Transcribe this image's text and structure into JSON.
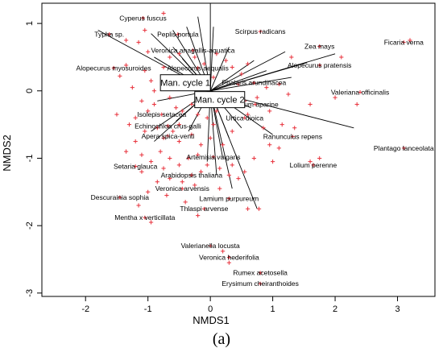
{
  "caption": "(a)",
  "chart_data": {
    "type": "scatter",
    "xlabel": "NMDS1",
    "ylabel": "NMDS2",
    "xlim": [
      -2.7,
      3.6
    ],
    "ylim": [
      -3.05,
      1.3
    ],
    "xticks": [
      "-2",
      "-1",
      "0",
      "1",
      "2",
      "3"
    ],
    "xtick_values": [
      -2,
      -1,
      0,
      1,
      2,
      3
    ],
    "yticks": [
      "1",
      "0",
      "-1",
      "-2",
      "-3"
    ],
    "ytick_values": [
      1,
      0,
      -1,
      -2,
      -3
    ],
    "grid": false,
    "point_color": "#e8323c",
    "point_marker": "+",
    "boxes": [
      {
        "label": "Man. cycle 1",
        "x": -0.4,
        "y": 0.12
      },
      {
        "label": "Man. cycle 2",
        "x": 0.15,
        "y": -0.13
      }
    ],
    "vector_origin": [
      0.0,
      0.0
    ],
    "species": [
      {
        "label": "Cyperus fuscus",
        "x": -1.08,
        "y": 1.08
      },
      {
        "label": "Typha sp.",
        "x": -1.62,
        "y": 0.84
      },
      {
        "label": "Peplis portula",
        "x": -0.52,
        "y": 0.84
      },
      {
        "label": "Scirpus radicans",
        "x": 0.8,
        "y": 0.88
      },
      {
        "label": "Ficaria verna",
        "x": 3.1,
        "y": 0.72
      },
      {
        "label": "Zea mays",
        "x": 1.75,
        "y": 0.66
      },
      {
        "label": "Veronica anagallis-aquatica",
        "x": -0.28,
        "y": 0.6
      },
      {
        "label": "Alopecurus myosuroides",
        "x": -1.55,
        "y": 0.34
      },
      {
        "label": "Alopecurus aequalis",
        "x": -0.2,
        "y": 0.34
      },
      {
        "label": "Alopecurus pratensis",
        "x": 1.75,
        "y": 0.38
      },
      {
        "label": "Phalaris arundinacea",
        "x": 0.7,
        "y": 0.12
      },
      {
        "label": "Valeriana officinalis",
        "x": 2.4,
        "y": -0.02
      },
      {
        "label": "Galium aparine",
        "x": 0.72,
        "y": -0.2
      },
      {
        "label": "Isolepis setacea",
        "x": -0.78,
        "y": -0.35
      },
      {
        "label": "Urtica dioica",
        "x": 0.55,
        "y": -0.4
      },
      {
        "label": "Echinochloa crus-galli",
        "x": -0.68,
        "y": -0.52
      },
      {
        "label": "Apera spica-venti",
        "x": -0.68,
        "y": -0.67
      },
      {
        "label": "Ranunculus repens",
        "x": 1.32,
        "y": -0.68
      },
      {
        "label": "Artemisia vulgaris",
        "x": 0.05,
        "y": -0.98
      },
      {
        "label": "Plantago lanceolata",
        "x": 3.1,
        "y": -0.85
      },
      {
        "label": "Setaria glauca",
        "x": -1.2,
        "y": -1.12
      },
      {
        "label": "Lolium perenne",
        "x": 1.65,
        "y": -1.1
      },
      {
        "label": "Arabidopsis thaliana",
        "x": -0.3,
        "y": -1.25
      },
      {
        "label": "Veronica arvensis",
        "x": -0.45,
        "y": -1.45
      },
      {
        "label": "Descurainia sophia",
        "x": -1.45,
        "y": -1.58
      },
      {
        "label": "Lamium purpureum",
        "x": 0.3,
        "y": -1.6
      },
      {
        "label": "Thlaspi arvense",
        "x": -0.1,
        "y": -1.75
      },
      {
        "label": "Mentha x verticillata",
        "x": -1.05,
        "y": -1.88
      },
      {
        "label": "Valerianella locusta",
        "x": 0.0,
        "y": -2.3
      },
      {
        "label": "Veronica hederifolia",
        "x": 0.3,
        "y": -2.47
      },
      {
        "label": "Rumex acetosella",
        "x": 0.8,
        "y": -2.7
      },
      {
        "label": "Erysimum cheiranthoides",
        "x": 0.8,
        "y": -2.86
      }
    ],
    "vectors": [
      [
        -1.8,
        0.9
      ],
      [
        -0.95,
        0.85
      ],
      [
        -0.6,
        0.9
      ],
      [
        -0.38,
        0.95
      ],
      [
        -0.2,
        1.1
      ],
      [
        0.0,
        1.3
      ],
      [
        0.05,
        0.95
      ],
      [
        0.3,
        0.65
      ],
      [
        -0.9,
        0.5
      ],
      [
        -0.45,
        0.48
      ],
      [
        0.7,
        0.45
      ],
      [
        1.2,
        0.58
      ],
      [
        1.55,
        0.42
      ],
      [
        2.0,
        0.55
      ],
      [
        0.9,
        0.3
      ],
      [
        1.3,
        0.2
      ],
      [
        2.3,
        -0.55
      ],
      [
        1.0,
        -0.65
      ],
      [
        0.65,
        -0.25
      ],
      [
        0.5,
        -0.55
      ],
      [
        0.3,
        -0.7
      ],
      [
        0.2,
        -1.0
      ],
      [
        0.35,
        -1.45
      ],
      [
        0.75,
        -1.75
      ],
      [
        0.1,
        -1.25
      ],
      [
        -0.05,
        -1.05
      ],
      [
        -0.35,
        -0.6
      ],
      [
        -0.55,
        -0.45
      ],
      [
        -0.95,
        -0.6
      ],
      [
        -0.9,
        -0.75
      ],
      [
        -0.85,
        -0.15
      ],
      [
        -0.6,
        0.65
      ]
    ],
    "points": [
      [
        -1.35,
        0.75
      ],
      [
        -1.15,
        0.72
      ],
      [
        -1.05,
        0.9
      ],
      [
        -0.75,
        1.15
      ],
      [
        -1.0,
        0.58
      ],
      [
        -0.65,
        0.5
      ],
      [
        -0.5,
        0.55
      ],
      [
        -0.75,
        0.35
      ],
      [
        -1.35,
        0.38
      ],
      [
        -1.45,
        0.22
      ],
      [
        -1.05,
        0.3
      ],
      [
        -0.95,
        0.15
      ],
      [
        -0.9,
        0.0
      ],
      [
        -0.7,
        0.05
      ],
      [
        -0.65,
        -0.1
      ],
      [
        -0.9,
        -0.2
      ],
      [
        -1.0,
        -0.3
      ],
      [
        -0.55,
        -0.25
      ],
      [
        -0.45,
        -0.3
      ],
      [
        -0.3,
        -0.2
      ],
      [
        -0.2,
        -0.35
      ],
      [
        -0.05,
        -0.4
      ],
      [
        0.05,
        -0.5
      ],
      [
        0.1,
        -0.3
      ],
      [
        -0.25,
        0.5
      ],
      [
        -0.1,
        0.4
      ],
      [
        0.1,
        0.55
      ],
      [
        0.25,
        0.45
      ],
      [
        0.35,
        0.35
      ],
      [
        0.5,
        0.25
      ],
      [
        0.6,
        0.4
      ],
      [
        0.45,
        0.1
      ],
      [
        0.3,
        -0.05
      ],
      [
        0.55,
        -0.15
      ],
      [
        0.75,
        -0.1
      ],
      [
        0.95,
        -0.3
      ],
      [
        1.15,
        -0.5
      ],
      [
        1.35,
        -0.55
      ],
      [
        1.1,
        0.1
      ],
      [
        0.9,
        0.05
      ],
      [
        1.25,
        -0.05
      ],
      [
        1.6,
        -0.2
      ],
      [
        2.0,
        -0.1
      ],
      [
        1.6,
        -1.05
      ],
      [
        1.75,
        -1.0
      ],
      [
        1.0,
        -1.05
      ],
      [
        0.95,
        -0.8
      ],
      [
        1.1,
        -0.85
      ],
      [
        2.35,
        -0.2
      ],
      [
        3.2,
        0.75
      ],
      [
        2.1,
        0.5
      ],
      [
        1.3,
        0.5
      ],
      [
        0.6,
        -0.35
      ],
      [
        0.35,
        -0.6
      ],
      [
        0.2,
        -0.8
      ],
      [
        0.0,
        -0.7
      ],
      [
        -0.15,
        -0.8
      ],
      [
        -0.3,
        -0.65
      ],
      [
        -0.5,
        -0.75
      ],
      [
        -0.6,
        -0.6
      ],
      [
        -0.75,
        -0.7
      ],
      [
        -0.85,
        -0.55
      ],
      [
        -1.05,
        -0.6
      ],
      [
        -1.2,
        -0.75
      ],
      [
        -1.35,
        -0.9
      ],
      [
        -1.1,
        -0.95
      ],
      [
        -0.95,
        -1.05
      ],
      [
        -0.8,
        -0.9
      ],
      [
        -0.65,
        -1.0
      ],
      [
        -0.5,
        -1.1
      ],
      [
        -0.35,
        -1.0
      ],
      [
        -0.2,
        -0.95
      ],
      [
        -0.05,
        -1.1
      ],
      [
        0.15,
        -1.15
      ],
      [
        0.3,
        -1.25
      ],
      [
        0.45,
        -1.3
      ],
      [
        0.55,
        -1.2
      ],
      [
        -0.65,
        -1.3
      ],
      [
        -0.45,
        -1.35
      ],
      [
        -0.25,
        -1.4
      ],
      [
        -0.85,
        -1.35
      ],
      [
        -1.0,
        -1.5
      ],
      [
        -0.7,
        -1.55
      ],
      [
        -0.4,
        -1.65
      ],
      [
        -0.2,
        -1.85
      ],
      [
        -1.15,
        -1.7
      ],
      [
        -0.95,
        -1.95
      ],
      [
        0.15,
        -1.45
      ],
      [
        0.6,
        -1.75
      ],
      [
        0.78,
        -1.75
      ],
      [
        -1.2,
        -0.4
      ],
      [
        -1.3,
        -0.5
      ],
      [
        -1.1,
        -0.15
      ],
      [
        -1.25,
        0.05
      ],
      [
        -0.35,
        0.1
      ],
      [
        -0.2,
        0.2
      ],
      [
        0.05,
        0.2
      ],
      [
        -0.5,
        -0.5
      ],
      [
        0.2,
        -2.38
      ],
      [
        0.3,
        -2.55
      ],
      [
        -0.15,
        -1.2
      ],
      [
        0.7,
        -1.0
      ],
      [
        -1.1,
        -1.2
      ],
      [
        -0.75,
        -1.15
      ],
      [
        0.35,
        -1.1
      ],
      [
        0.85,
        -0.55
      ],
      [
        -0.05,
        0.05
      ],
      [
        -1.5,
        -0.35
      ]
    ]
  }
}
